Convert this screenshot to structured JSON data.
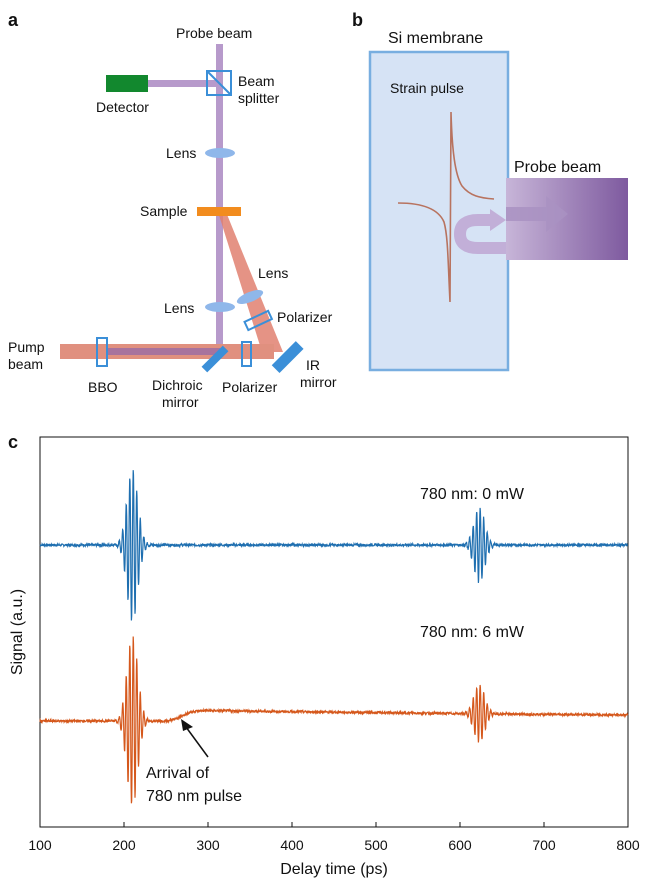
{
  "panel_a": {
    "panel_label": "a",
    "labels": {
      "probe_beam": "Probe beam",
      "detector": "Detector",
      "beam_splitter_1": "Beam",
      "beam_splitter_2": "splitter",
      "lens_top": "Lens",
      "sample": "Sample",
      "lens_right": "Lens",
      "lens_bottom": "Lens",
      "polarizer_right": "Polarizer",
      "pump_beam_1": "Pump",
      "pump_beam_2": "beam",
      "bbo": "BBO",
      "dichroic_1": "Dichroic",
      "dichroic_2": "mirror",
      "polarizer_bottom": "Polarizer",
      "ir_1": "IR",
      "ir_2": "mirror"
    },
    "colors": {
      "probe": "#b79acb",
      "pump": "#d9806d",
      "optics": "#3b8fd8",
      "lens": "#8fb7ea",
      "detector": "#12882e",
      "sample": "#f28c1e"
    }
  },
  "panel_b": {
    "panel_label": "b",
    "labels": {
      "membrane": "Si membrane",
      "strain_pulse": "Strain pulse",
      "probe_beam": "Probe beam"
    },
    "colors": {
      "membrane_fill": "#d6e3f5",
      "membrane_border": "#78aee0",
      "pulse": "#b8735f",
      "probe": "#7e5a9f"
    }
  },
  "panel_c": {
    "panel_label": "c",
    "annotations": {
      "top_trace": "780 nm: 0 mW",
      "bottom_trace": "780 nm: 6 mW",
      "arrival_1": "Arrival of",
      "arrival_2": "780 nm pulse"
    },
    "chart_data": {
      "type": "line",
      "xlabel": "Delay time (ps)",
      "ylabel": "Signal (a.u.)",
      "xlim": [
        100,
        800
      ],
      "xticks": [
        100,
        200,
        300,
        400,
        500,
        600,
        700,
        800
      ],
      "yticks": [],
      "grid": false,
      "legend": "none",
      "series": [
        {
          "color": "#1f6fb0",
          "baseline": 0,
          "echoes": [
            {
              "center": 210,
              "amplitude": 0.85
            },
            {
              "center": 623,
              "amplitude": 0.42
            }
          ],
          "step": null
        },
        {
          "color": "#d5581c",
          "baseline": 0,
          "echoes": [
            {
              "center": 210,
              "amplitude": 0.95
            },
            {
              "center": 623,
              "amplitude": 0.33
            }
          ],
          "step": {
            "start": 270,
            "height": 0.12
          }
        }
      ]
    }
  }
}
